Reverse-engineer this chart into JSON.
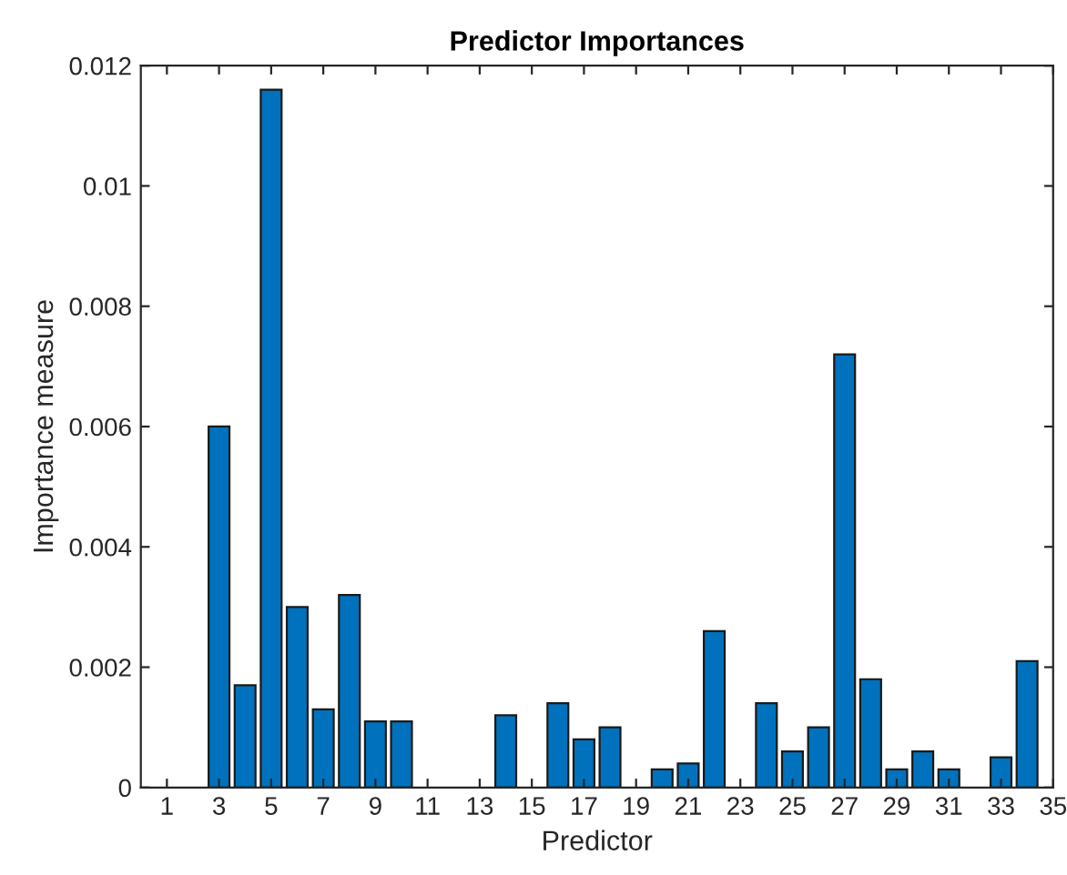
{
  "chart_data": {
    "type": "bar",
    "title": "Predictor Importances",
    "xlabel": "Predictor",
    "ylabel": "Importance measure",
    "x": [
      1,
      2,
      3,
      4,
      5,
      6,
      7,
      8,
      9,
      10,
      11,
      12,
      13,
      14,
      15,
      16,
      17,
      18,
      19,
      20,
      21,
      22,
      23,
      24,
      25,
      26,
      27,
      28,
      29,
      30,
      31,
      32,
      33,
      34
    ],
    "values": [
      0,
      0,
      0.006,
      0.0017,
      0.0116,
      0.003,
      0.0013,
      0.0032,
      0.0011,
      0.0011,
      0,
      0,
      0,
      0.0012,
      0,
      0.0014,
      0.0008,
      0.001,
      0,
      0.0003,
      0.0004,
      0.0026,
      0,
      0.0014,
      0.0006,
      0.001,
      0.0072,
      0.0018,
      0.0003,
      0.0006,
      0.0003,
      0,
      0.0005,
      0.0021
    ],
    "color": "#0072bd",
    "xlim": [
      0,
      35
    ],
    "xticks": [
      1,
      3,
      5,
      7,
      9,
      11,
      13,
      15,
      17,
      19,
      21,
      23,
      25,
      27,
      29,
      31,
      33,
      35
    ],
    "ylim": [
      0,
      0.012
    ],
    "yticks": [
      0,
      0.002,
      0.004,
      0.006,
      0.008,
      0.01,
      0.012
    ],
    "grid": false
  }
}
